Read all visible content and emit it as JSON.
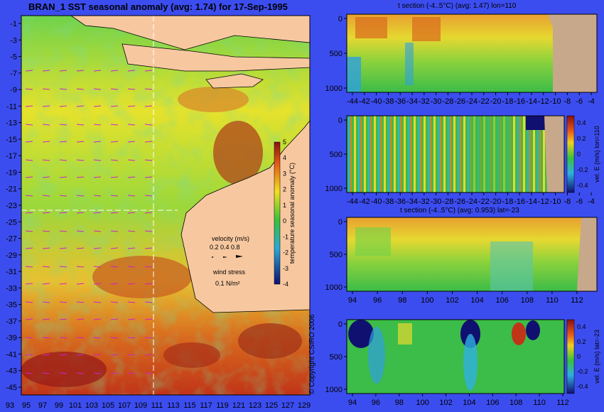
{
  "main_title": "BRAN_1  SST seasonal anomaly  (avg: 1.74)  for 17-Sep-1995",
  "copyright": "© Copyright CSIRO 2006",
  "colors": {
    "background": "#3c4df0",
    "land": "#f7c8a0",
    "land_dark": "#c8a88a"
  },
  "map": {
    "colorbar": {
      "label": "temperature seasonal anomaly (°C)",
      "ticks": [
        "5",
        "4",
        "3",
        "2",
        "1",
        "0",
        "-1",
        "-2",
        "-3",
        "-4"
      ]
    },
    "legend": {
      "velocity_title": "velocity (m/s)",
      "velocity_scale": "0.2 0.4 0.8",
      "wind_title": "wind stress",
      "wind_scale": "0.1 N/m²"
    }
  },
  "panels": {
    "t_lon_title": "t section (-4..5°C) (avg: 1.47) lon=110",
    "t_lat_title": "t section (-4..5°C) (avg: 0.953) lat=-23",
    "vel_colorbar_label_lon": "vel. E (m/s) lon=110",
    "vel_colorbar_label_lat": "vel. E (m/s) lat=-23",
    "vel_ticks": [
      "0.4",
      "0.2",
      "0",
      "-0.2",
      "-0.4"
    ]
  },
  "chart_data": [
    {
      "type": "heatmap",
      "title": "BRAN_1  SST seasonal anomaly  (avg: 1.74)  for 17-Sep-1995",
      "x_ticks": [
        "93",
        "95",
        "97",
        "99",
        "101",
        "103",
        "105",
        "107",
        "109",
        "111",
        "113",
        "115",
        "117",
        "119",
        "121",
        "123",
        "125",
        "127",
        "129"
      ],
      "y_ticks": [
        "-1",
        "-3",
        "-5",
        "-7",
        "-9",
        "-11",
        "-13",
        "-15",
        "-17",
        "-19",
        "-21",
        "-23",
        "-25",
        "-27",
        "-29",
        "-31",
        "-33",
        "-35",
        "-37",
        "-39",
        "-41",
        "-43",
        "-45"
      ],
      "zlim": [
        -4,
        5
      ]
    },
    {
      "type": "heatmap",
      "title": "t section (-4..5°C) (avg: 1.47) lon=110",
      "x_ticks": [
        "-44",
        "-42",
        "-40",
        "-38",
        "-36",
        "-34",
        "-32",
        "-30",
        "-28",
        "-26",
        "-24",
        "-22",
        "-20",
        "-18",
        "-16",
        "-14",
        "-12",
        "-10",
        "-8",
        "-6",
        "-4"
      ],
      "y_ticks": [
        "0",
        "500",
        "1000"
      ]
    },
    {
      "type": "heatmap",
      "title": "",
      "x_ticks": [
        "-44",
        "-42",
        "-40",
        "-38",
        "-36",
        "-34",
        "-32",
        "-30",
        "-28",
        "-26",
        "-24",
        "-22",
        "-20",
        "-18",
        "-16",
        "-14",
        "-12",
        "-10",
        "-8",
        "-6",
        "-4"
      ],
      "y_ticks": [
        "0",
        "500",
        "1000"
      ],
      "zlim": [
        -0.4,
        0.4
      ]
    },
    {
      "type": "heatmap",
      "title": "t section (-4..5°C) (avg: 0.953) lat=-23",
      "x_ticks": [
        "94",
        "96",
        "98",
        "100",
        "102",
        "104",
        "106",
        "108",
        "110",
        "112"
      ],
      "y_ticks": [
        "0",
        "500",
        "1000"
      ]
    },
    {
      "type": "heatmap",
      "title": "",
      "x_ticks": [
        "94",
        "96",
        "98",
        "100",
        "102",
        "104",
        "106",
        "108",
        "110",
        "112"
      ],
      "y_ticks": [
        "0",
        "500",
        "1000"
      ],
      "zlim": [
        -0.4,
        0.4
      ]
    }
  ]
}
